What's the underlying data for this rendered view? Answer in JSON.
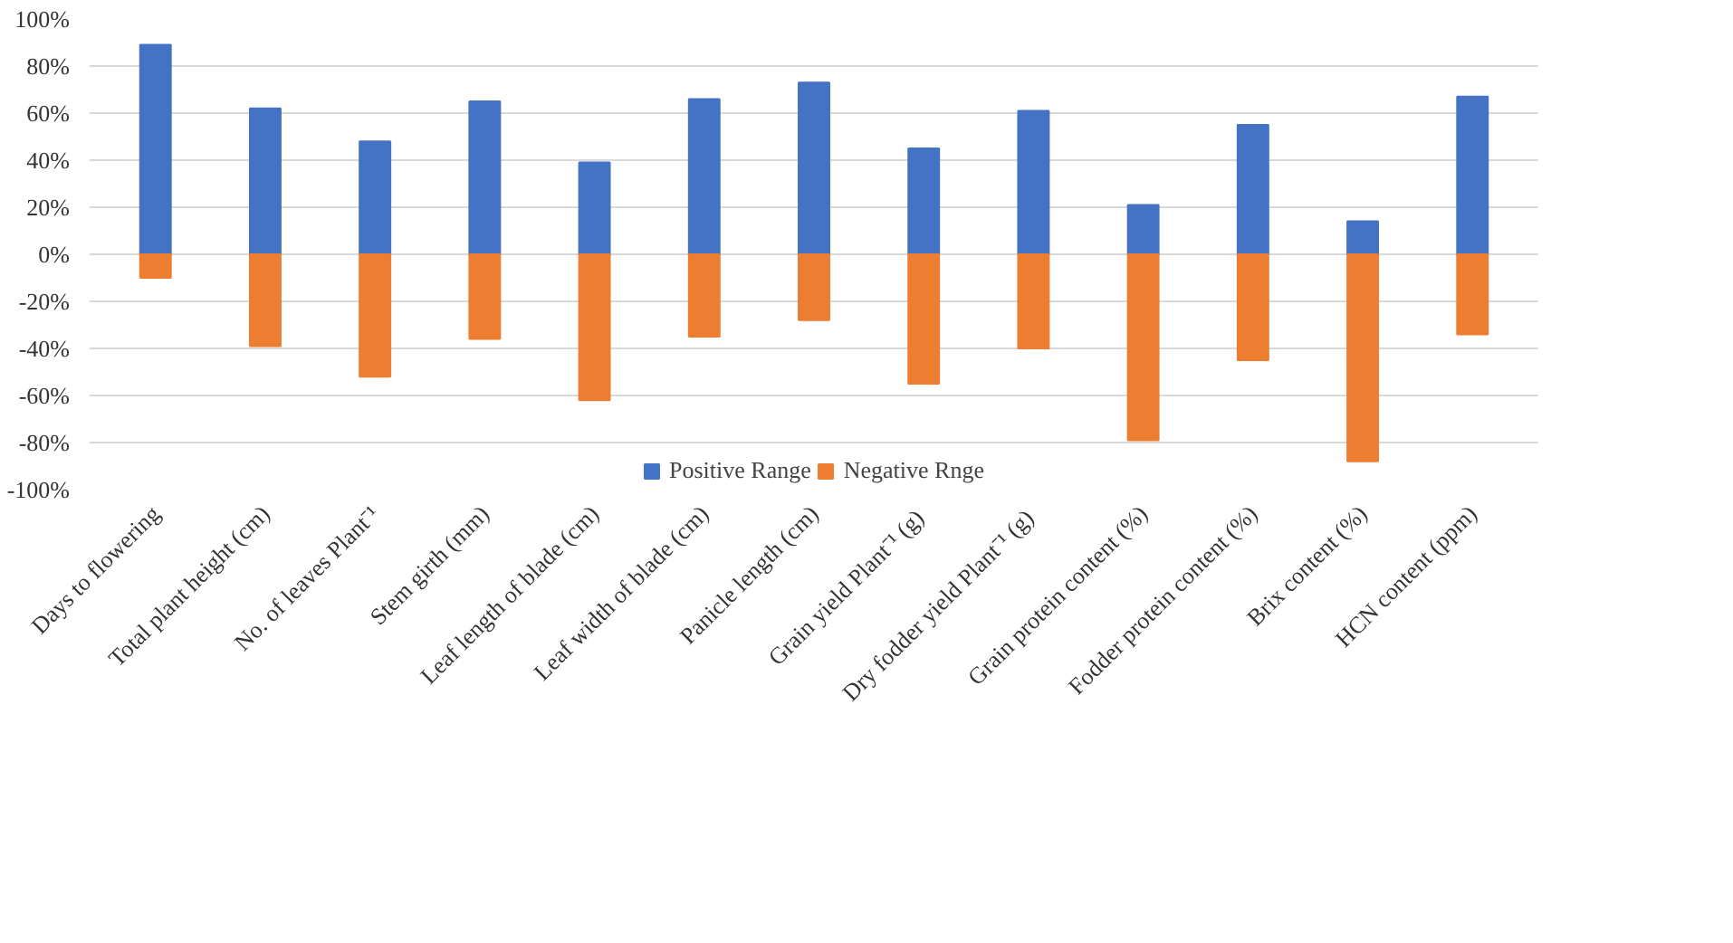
{
  "chart_data": {
    "type": "bar",
    "stacked": true,
    "categories": [
      "Days to flowering",
      "Total plant height (cm)",
      "No. of leaves Plant⁻¹",
      "Stem girth (mm)",
      "Leaf length of blade (cm)",
      "Leaf width of blade (cm)",
      "Panicle length (cm)",
      "Grain yield  Plant⁻¹ (g)",
      "Dry fodder yield  Plant⁻¹ (g)",
      "Grain protein content (%)",
      "Fodder protein content (%)",
      "Brix content (%)",
      "HCN content (ppm)"
    ],
    "series": [
      {
        "name": "Positive Range",
        "color": "#4472c4",
        "values": [
          89,
          62,
          48,
          65,
          39,
          66,
          73,
          45,
          61,
          21,
          55,
          14,
          67
        ]
      },
      {
        "name": "Negative Rnge",
        "color": "#ed7d31",
        "values": [
          -10,
          -39,
          -52,
          -36,
          -62,
          -35,
          -28,
          -55,
          -40,
          -79,
          -45,
          -88,
          -34
        ]
      }
    ],
    "ylim": [
      -100,
      100
    ],
    "yticks": [
      {
        "value": -100,
        "label": "-100%"
      },
      {
        "value": -80,
        "label": "-80%"
      },
      {
        "value": -60,
        "label": "-60%"
      },
      {
        "value": -40,
        "label": "-40%"
      },
      {
        "value": -20,
        "label": "-20%"
      },
      {
        "value": 0,
        "label": "0%"
      },
      {
        "value": 20,
        "label": "20%"
      },
      {
        "value": 40,
        "label": "40%"
      },
      {
        "value": 60,
        "label": "60%"
      },
      {
        "value": 80,
        "label": "80%"
      },
      {
        "value": 100,
        "label": "100%"
      }
    ],
    "grid": "y",
    "legend": "bottom"
  }
}
